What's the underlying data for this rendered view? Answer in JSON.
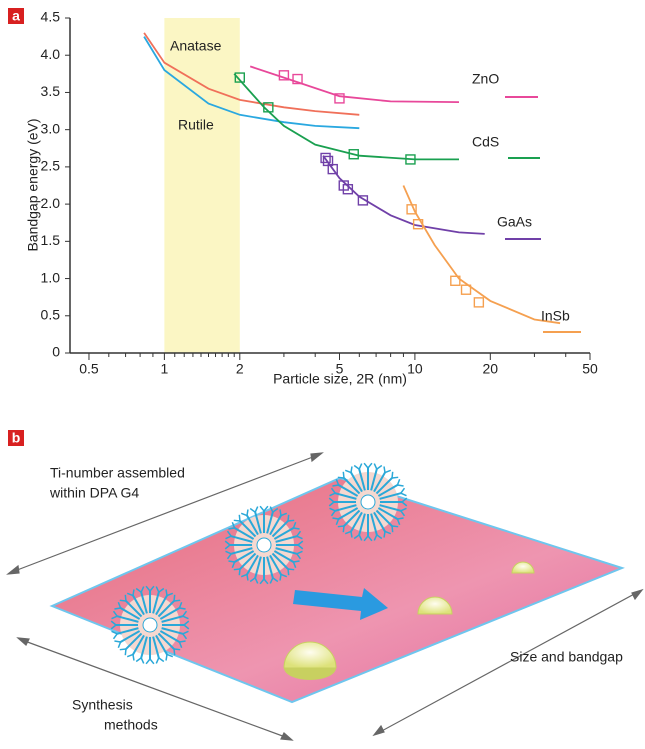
{
  "chart_data": {
    "type": "line",
    "panel_label": "a",
    "x_label": "Particle size, 2R (nm)",
    "y_label": "Bandgap energy (eV)",
    "xscale": "log",
    "xlim": [
      0.42,
      50
    ],
    "ylim": [
      0,
      4.5
    ],
    "xticks": [
      0.5,
      1,
      2,
      5,
      10,
      20,
      50
    ],
    "minor_xticks": [
      0.6,
      0.7,
      0.8,
      0.9,
      3,
      4,
      6,
      7,
      8,
      9,
      30,
      40
    ],
    "minor_xticks_shaded": [
      1.1,
      1.2,
      1.3,
      1.4,
      1.5,
      1.6,
      1.7,
      1.8,
      1.9
    ],
    "yticks": [
      0,
      {
        "value": 0.5,
        "label": "0.5"
      },
      {
        "value": 1,
        "label": "1.0"
      },
      {
        "value": 1.5,
        "label": "1.5"
      },
      {
        "value": 2,
        "label": "2.0"
      },
      {
        "value": 2.5,
        "label": "2.5"
      },
      {
        "value": 3,
        "label": "3.0"
      },
      {
        "value": 3.5,
        "label": "3.5"
      },
      {
        "value": 4,
        "label": "4.0"
      },
      {
        "value": 4.5,
        "label": "4.5"
      }
    ],
    "shaded_region": [
      1,
      2
    ],
    "shaded_color": "#fbf6c4",
    "series": [
      {
        "name": "Anatase",
        "color": "#f0705a",
        "x": [
          0.83,
          1,
          1.5,
          2,
          3,
          4,
          6
        ],
        "values": [
          4.3,
          3.9,
          3.55,
          3.4,
          3.3,
          3.25,
          3.2
        ]
      },
      {
        "name": "Rutile",
        "color": "#2aa8e0",
        "x": [
          0.83,
          1,
          1.5,
          2,
          3,
          4,
          6
        ],
        "values": [
          4.25,
          3.8,
          3.35,
          3.2,
          3.1,
          3.05,
          3.02
        ]
      },
      {
        "name": "ZnO",
        "color": "#e8489a",
        "x": [
          2.2,
          3,
          5,
          8,
          15
        ],
        "values": [
          3.85,
          3.7,
          3.45,
          3.38,
          3.37
        ],
        "marker_x": [
          3,
          3.4,
          5
        ],
        "marker_values": [
          3.73,
          3.68,
          3.42
        ]
      },
      {
        "name": "CdS",
        "color": "#1aa050",
        "x": [
          1.9,
          2.5,
          3,
          4,
          6,
          10,
          15
        ],
        "values": [
          3.75,
          3.3,
          3.05,
          2.8,
          2.65,
          2.6,
          2.6
        ],
        "marker_x": [
          2,
          2.6,
          5.7,
          9.6
        ],
        "marker_values": [
          3.7,
          3.3,
          2.67,
          2.6
        ]
      },
      {
        "name": "GaAs",
        "color": "#7040a8",
        "x": [
          4.3,
          5,
          6,
          8,
          10,
          15,
          19
        ],
        "values": [
          2.65,
          2.35,
          2.1,
          1.85,
          1.72,
          1.62,
          1.6
        ],
        "marker_x": [
          4.4,
          4.5,
          4.7,
          5.2,
          5.4,
          6.2
        ],
        "marker_values": [
          2.62,
          2.58,
          2.47,
          2.25,
          2.2,
          2.05
        ]
      },
      {
        "name": "InSb",
        "color": "#f5a050",
        "x": [
          9,
          10,
          12,
          15,
          20,
          30,
          38
        ],
        "values": [
          2.25,
          1.9,
          1.45,
          1.0,
          0.7,
          0.45,
          0.4
        ],
        "marker_x": [
          9.7,
          10.3,
          14.5,
          16,
          18
        ],
        "marker_values": [
          1.93,
          1.73,
          0.97,
          0.85,
          0.68
        ]
      }
    ]
  },
  "diagram": {
    "panel_label": "b",
    "labels": [
      "Ti-number assembled",
      "within DPA G4",
      "Synthesis",
      "methods",
      "Size and bandgap"
    ]
  }
}
